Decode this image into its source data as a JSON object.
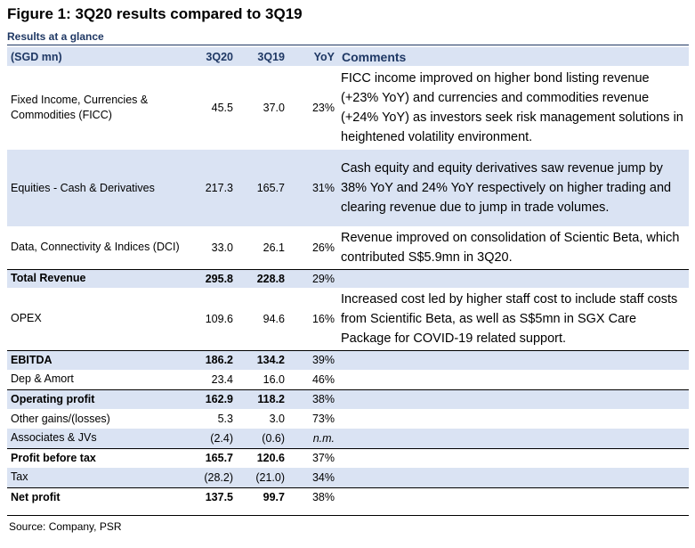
{
  "figure_title": "Figure 1: 3Q20 results compared to 3Q19",
  "subtitle": "Results at a glance",
  "headers": {
    "label": "(SGD mn)",
    "q20": "3Q20",
    "q19": "3Q19",
    "yoy": "YoY",
    "comments": "Comments"
  },
  "rows": [
    {
      "label": "Fixed Income, Currencies & Commodities (FICC)",
      "q20": "45.5",
      "q19": "37.0",
      "yoy": "23%",
      "comment": "FICC income improved on higher bond listing revenue (+23% YoY) and currencies and commodities revenue (+24% YoY) as investors seek risk management solutions in heightened volatility environment."
    },
    {
      "label": "Equities - Cash & Derivatives",
      "q20": "217.3",
      "q19": "165.7",
      "yoy": "31%",
      "comment": "Cash equity and equity derivatives saw revenue jump by 38% YoY and 24% YoY respectively on higher trading and clearing revenue due to jump in trade volumes."
    },
    {
      "label": "Data, Connectivity & Indices (DCI)",
      "q20": "33.0",
      "q19": "26.1",
      "yoy": "26%",
      "comment": "Revenue improved on consolidation of Scientic Beta, which contributed S$5.9mn in 3Q20."
    },
    {
      "label": "Total Revenue",
      "q20": "295.8",
      "q19": "228.8",
      "yoy": "29%",
      "comment": ""
    },
    {
      "label": "OPEX",
      "q20": "109.6",
      "q19": "94.6",
      "yoy": "16%",
      "comment": "Increased cost led by higher staff cost to include staff costs from Scientific Beta, as well as S$5mn in SGX Care Package for COVID-19 related support."
    },
    {
      "label": "EBITDA",
      "q20": "186.2",
      "q19": "134.2",
      "yoy": "39%",
      "comment": ""
    },
    {
      "label": "Dep & Amort",
      "q20": "23.4",
      "q19": "16.0",
      "yoy": "46%",
      "comment": ""
    },
    {
      "label": "Operating profit",
      "q20": "162.9",
      "q19": "118.2",
      "yoy": "38%",
      "comment": ""
    },
    {
      "label": "Other gains/(losses)",
      "q20": "5.3",
      "q19": "3.0",
      "yoy": "73%",
      "comment": ""
    },
    {
      "label": "Associates & JVs",
      "q20": "(2.4)",
      "q19": "(0.6)",
      "yoy": "n.m.",
      "comment": ""
    },
    {
      "label": "Profit before tax",
      "q20": "165.7",
      "q19": "120.6",
      "yoy": "37%",
      "comment": ""
    },
    {
      "label": "Tax",
      "q20": "(28.2)",
      "q19": "(21.0)",
      "yoy": "34%",
      "comment": ""
    },
    {
      "label": "Net profit",
      "q20": "137.5",
      "q19": "99.7",
      "yoy": "38%",
      "comment": ""
    }
  ],
  "source": "Source: Company, PSR",
  "colors": {
    "header_fill": "#dae3f3",
    "header_text": "#1f3864"
  }
}
